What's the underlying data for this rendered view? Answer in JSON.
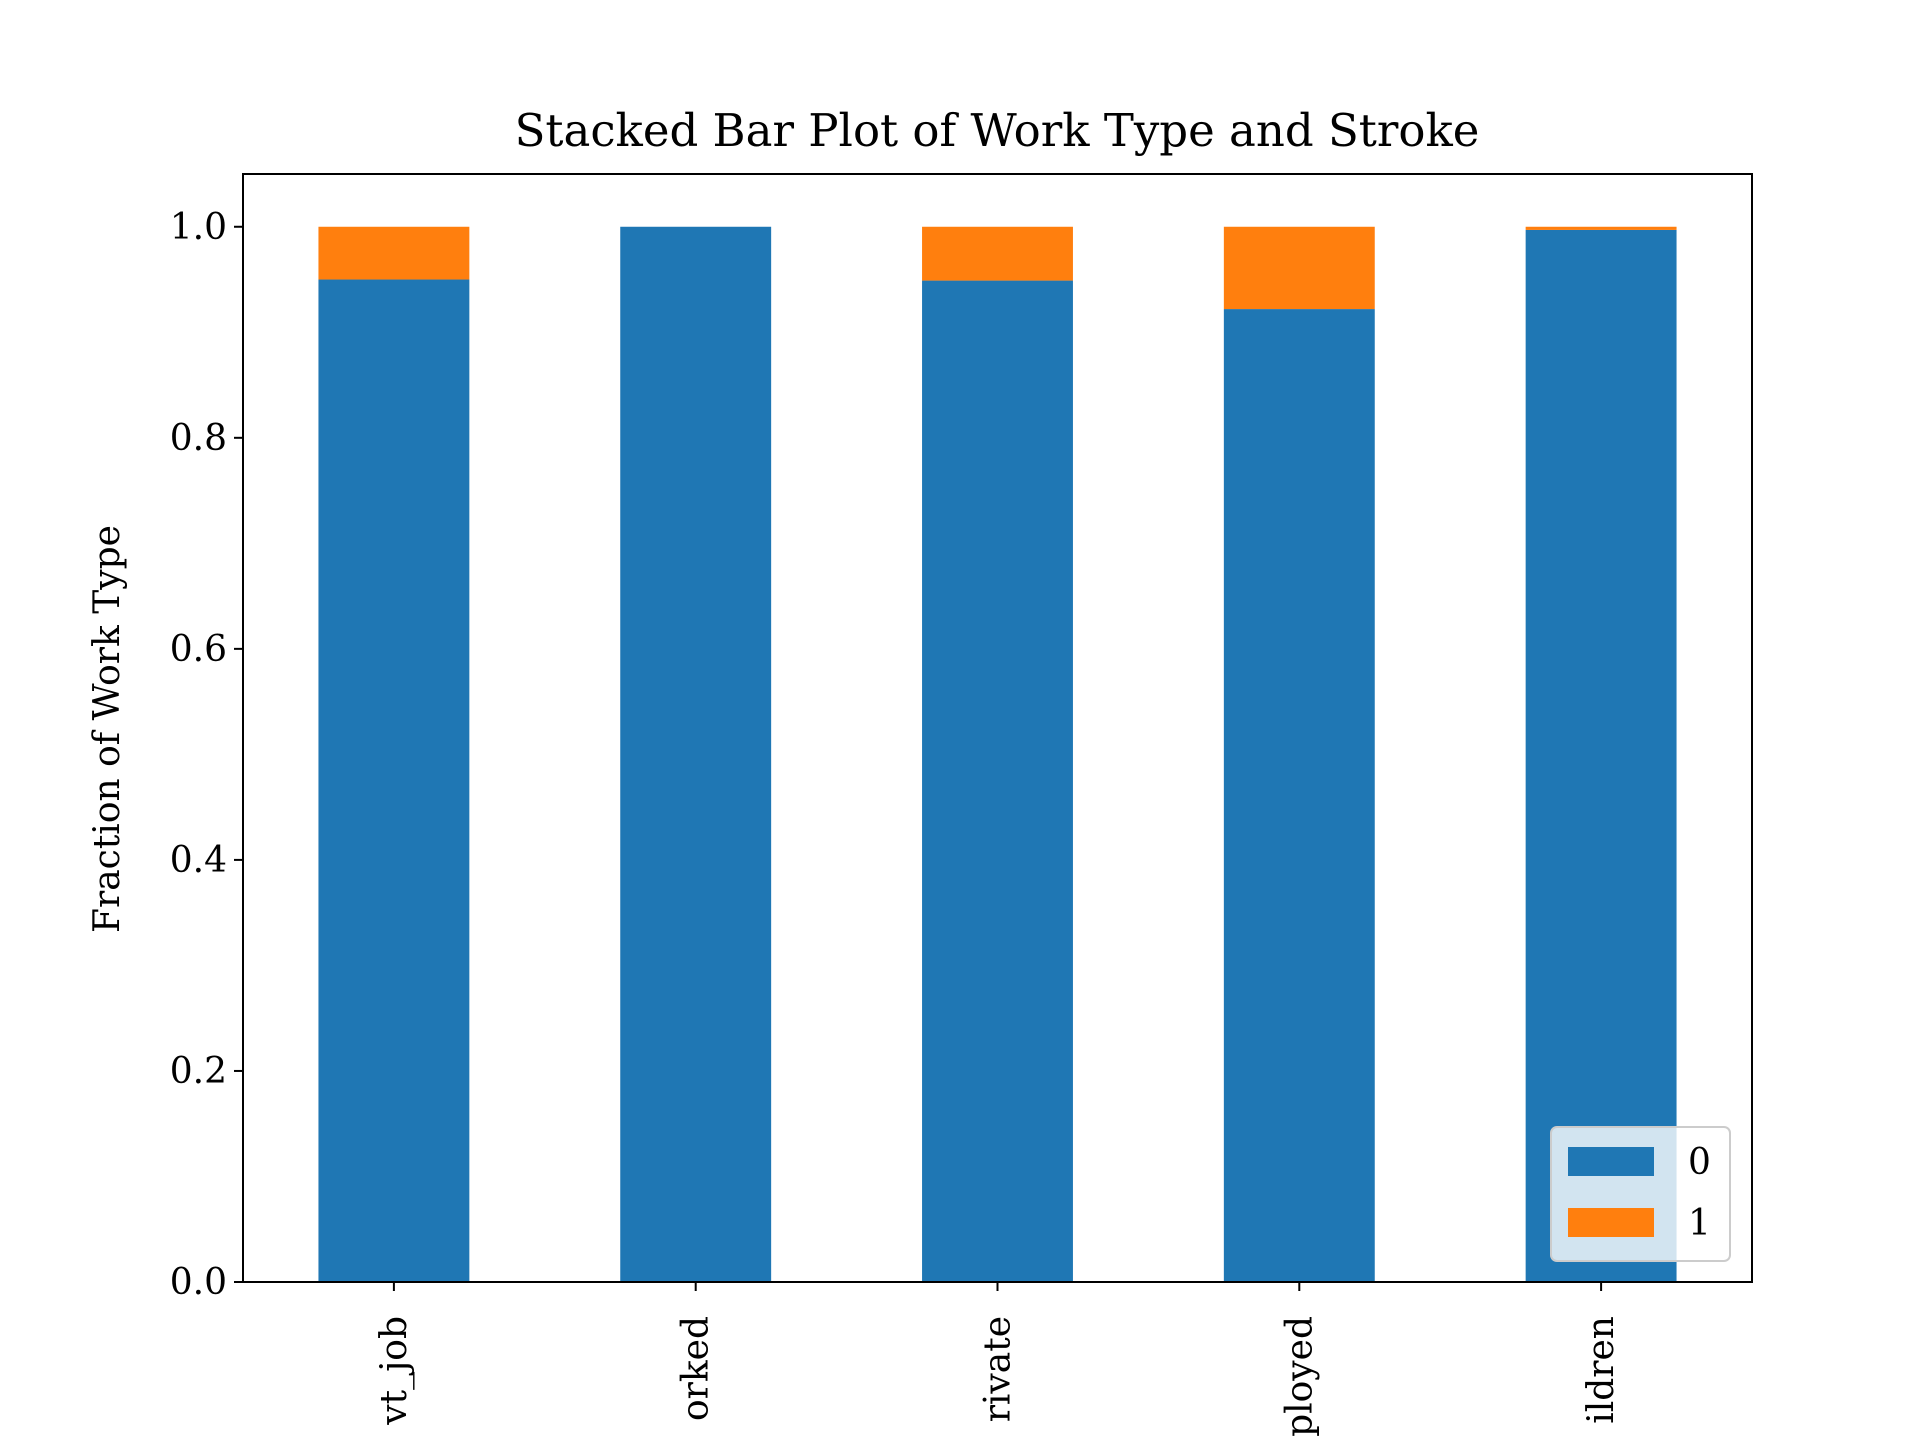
{
  "chart_data": {
    "type": "stacked_bar",
    "title": "Stacked Bar Plot of Work Type and Stroke",
    "y_label": "Fraction of Work Type",
    "categories": [
      "vt_job",
      "orked",
      "rivate",
      "ployed",
      "ildren"
    ],
    "series": [
      {
        "name": "0",
        "color": "#1f77b4",
        "values": [
          0.95,
          1.0,
          0.949,
          0.922,
          0.997
        ]
      },
      {
        "name": "1",
        "color": "#ff7f0e",
        "values": [
          0.05,
          0.0,
          0.051,
          0.078,
          0.003
        ]
      }
    ],
    "ylim": [
      0,
      1.05
    ],
    "yticks": [
      {
        "value": 0,
        "label": "0.0"
      },
      {
        "value": 0.2,
        "label": "0.2"
      },
      {
        "value": 0.4,
        "label": "0.4"
      },
      {
        "value": 0.6,
        "label": "0.6"
      },
      {
        "value": 0.8,
        "label": "0.8"
      },
      {
        "value": 1,
        "label": "1.0"
      }
    ],
    "legend_position": "lower right"
  }
}
